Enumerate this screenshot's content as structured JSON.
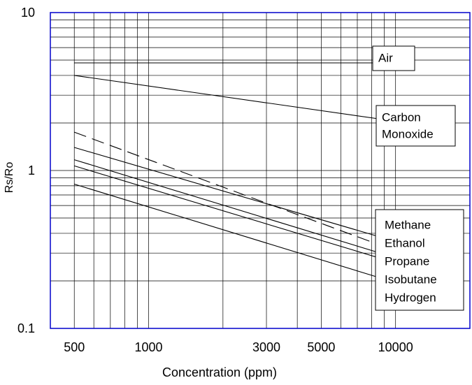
{
  "chart_data": {
    "type": "line",
    "xlabel": "Concentration (ppm)",
    "ylabel": "Rs/Ro",
    "x_scale": "log",
    "y_scale": "log",
    "xlim": [
      400,
      20000
    ],
    "ylim": [
      0.1,
      10
    ],
    "x_ticks": [
      500,
      1000,
      3000,
      5000,
      10000
    ],
    "y_ticks": [
      0.1,
      1,
      10
    ],
    "grid": true,
    "colors": {
      "frame": "#0000cc",
      "grid": "#000000",
      "series": "#000000"
    },
    "series": [
      {
        "name": "Air",
        "style": "solid",
        "x": [
          500,
          10000
        ],
        "y": [
          4.8,
          4.8
        ]
      },
      {
        "name": "Carbon Monoxide",
        "style": "solid",
        "x": [
          500,
          10000
        ],
        "y": [
          4.0,
          2.05
        ]
      },
      {
        "name": "Methane",
        "style": "dashed",
        "x": [
          500,
          10000
        ],
        "y": [
          1.75,
          0.31
        ]
      },
      {
        "name": "Ethanol",
        "style": "solid",
        "x": [
          500,
          10000
        ],
        "y": [
          1.4,
          0.355
        ]
      },
      {
        "name": "Propane",
        "style": "solid",
        "x": [
          500,
          10000
        ],
        "y": [
          1.17,
          0.28
        ]
      },
      {
        "name": "Isobutane",
        "style": "solid",
        "x": [
          500,
          10000
        ],
        "y": [
          1.07,
          0.26
        ]
      },
      {
        "name": "Hydrogen",
        "style": "solid",
        "x": [
          500,
          10000
        ],
        "y": [
          0.82,
          0.195
        ]
      }
    ],
    "labels": {
      "air": [
        "Air"
      ],
      "co": [
        "Carbon",
        "Monoxide"
      ],
      "group": [
        "Methane",
        "Ethanol",
        "Propane",
        "Isobutane",
        "Hydrogen"
      ]
    }
  }
}
